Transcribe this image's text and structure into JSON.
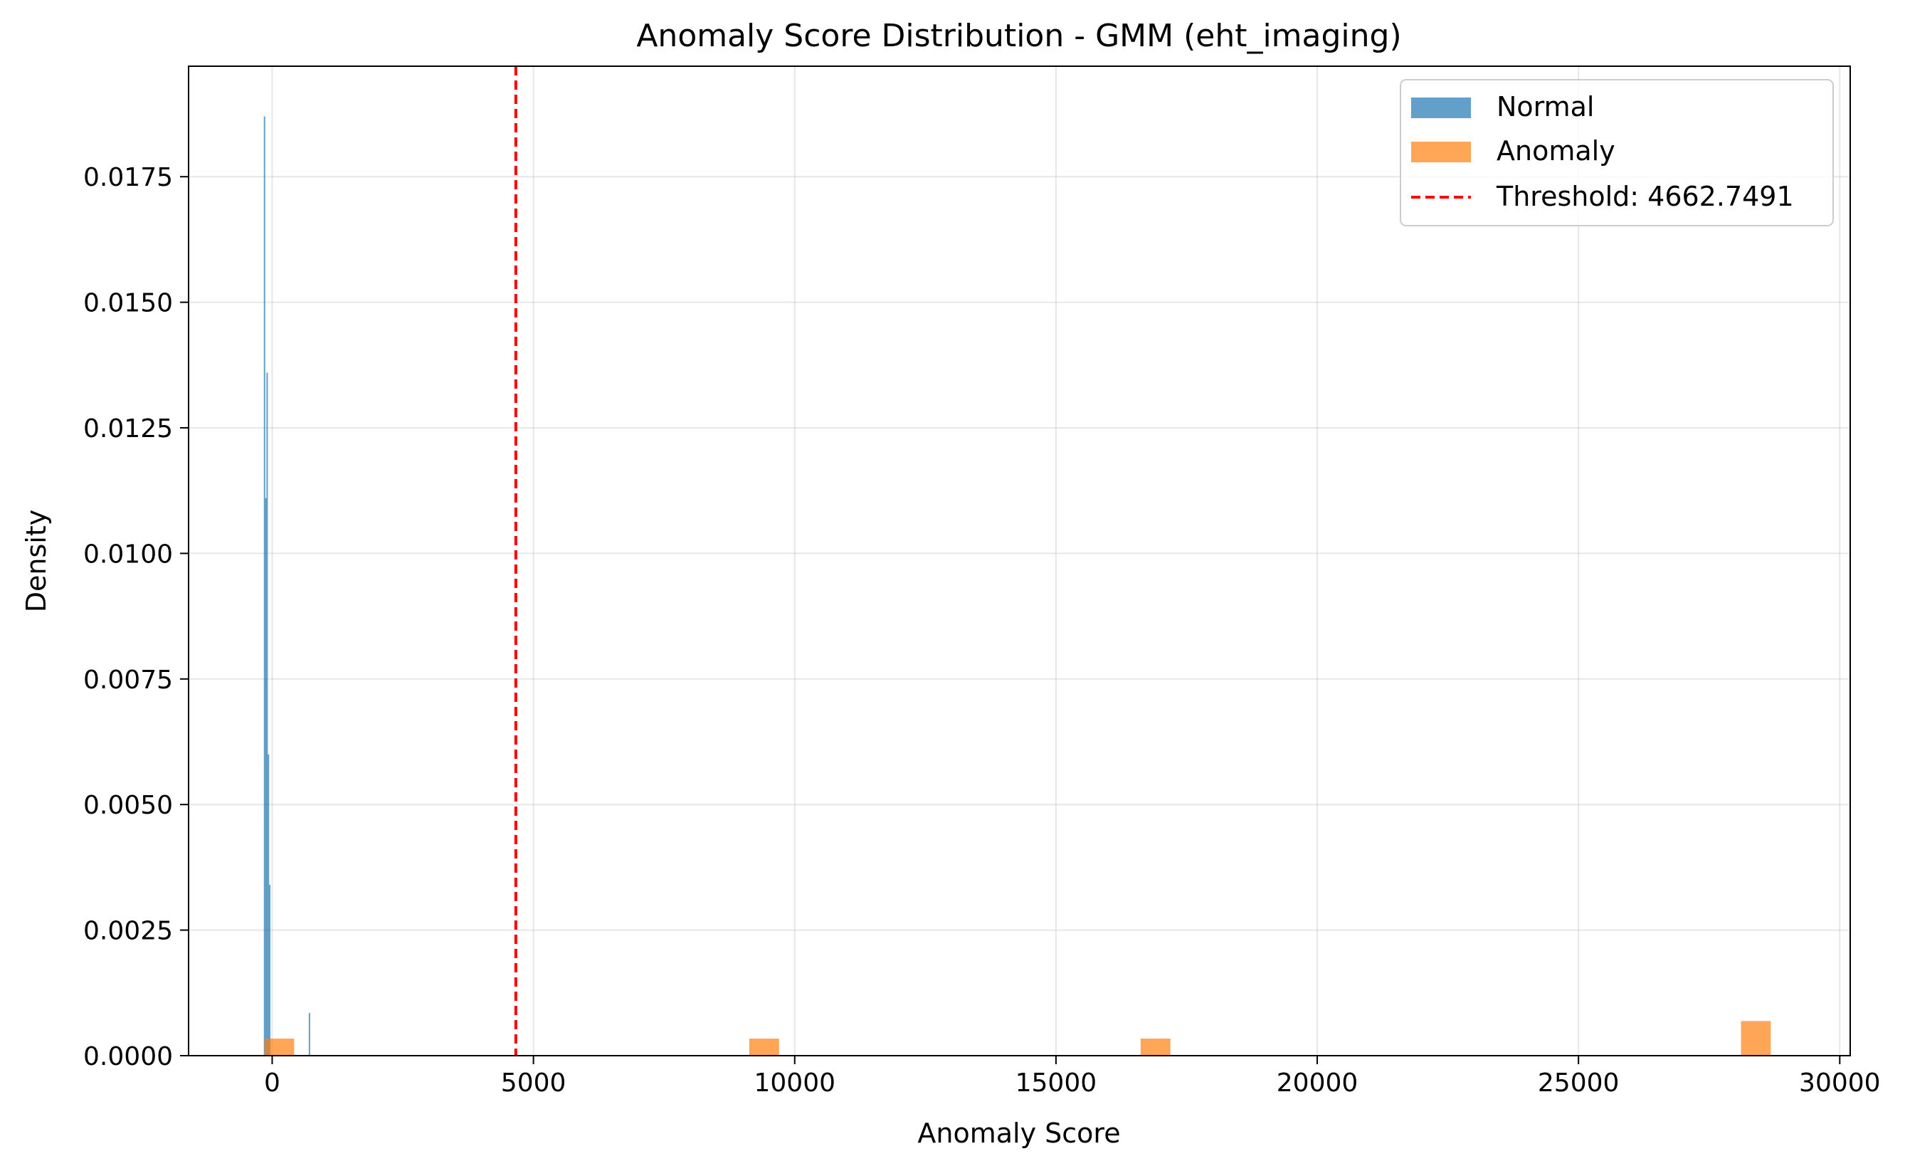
{
  "chart_data": {
    "type": "histogram",
    "title": "Anomaly Score Distribution - GMM (eht_imaging)",
    "xlabel": "Anomaly Score",
    "ylabel": "Density",
    "xlim": [
      -1600,
      30200
    ],
    "ylim": [
      0,
      0.0197
    ],
    "xticks": [
      0,
      5000,
      10000,
      15000,
      20000,
      25000,
      30000
    ],
    "xtick_labels": [
      "0",
      "5000",
      "10000",
      "15000",
      "20000",
      "25000",
      "30000"
    ],
    "yticks": [
      0,
      0.0025,
      0.005,
      0.0075,
      0.01,
      0.0125,
      0.015,
      0.0175
    ],
    "ytick_labels": [
      "0.0000",
      "0.0025",
      "0.0050",
      "0.0075",
      "0.0100",
      "0.0125",
      "0.0150",
      "0.0175"
    ],
    "grid": true,
    "legend_position": "top-right",
    "series": [
      {
        "name": "Normal",
        "color": "#1f77b4",
        "opacity": 0.7,
        "bins": [
          {
            "x0": -160,
            "x1": -135,
            "density": 0.0187
          },
          {
            "x0": -135,
            "x1": -110,
            "density": 0.0111
          },
          {
            "x0": -110,
            "x1": -85,
            "density": 0.0136
          },
          {
            "x0": -85,
            "x1": -60,
            "density": 0.006
          },
          {
            "x0": -60,
            "x1": -35,
            "density": 0.0034
          },
          {
            "x0": 700,
            "x1": 725,
            "density": 0.00085
          }
        ]
      },
      {
        "name": "Anomaly",
        "color": "#ff7f0e",
        "opacity": 0.7,
        "bins": [
          {
            "x0": -150,
            "x1": 420,
            "density": 0.00034
          },
          {
            "x0": 9130,
            "x1": 9700,
            "density": 0.00034
          },
          {
            "x0": 16620,
            "x1": 17190,
            "density": 0.00034
          },
          {
            "x0": 28110,
            "x1": 28680,
            "density": 0.00069
          }
        ]
      }
    ],
    "threshold": {
      "label": "Threshold: 4662.7491",
      "value": 4662.7491,
      "color": "#ff0000",
      "style": "dashed"
    }
  }
}
